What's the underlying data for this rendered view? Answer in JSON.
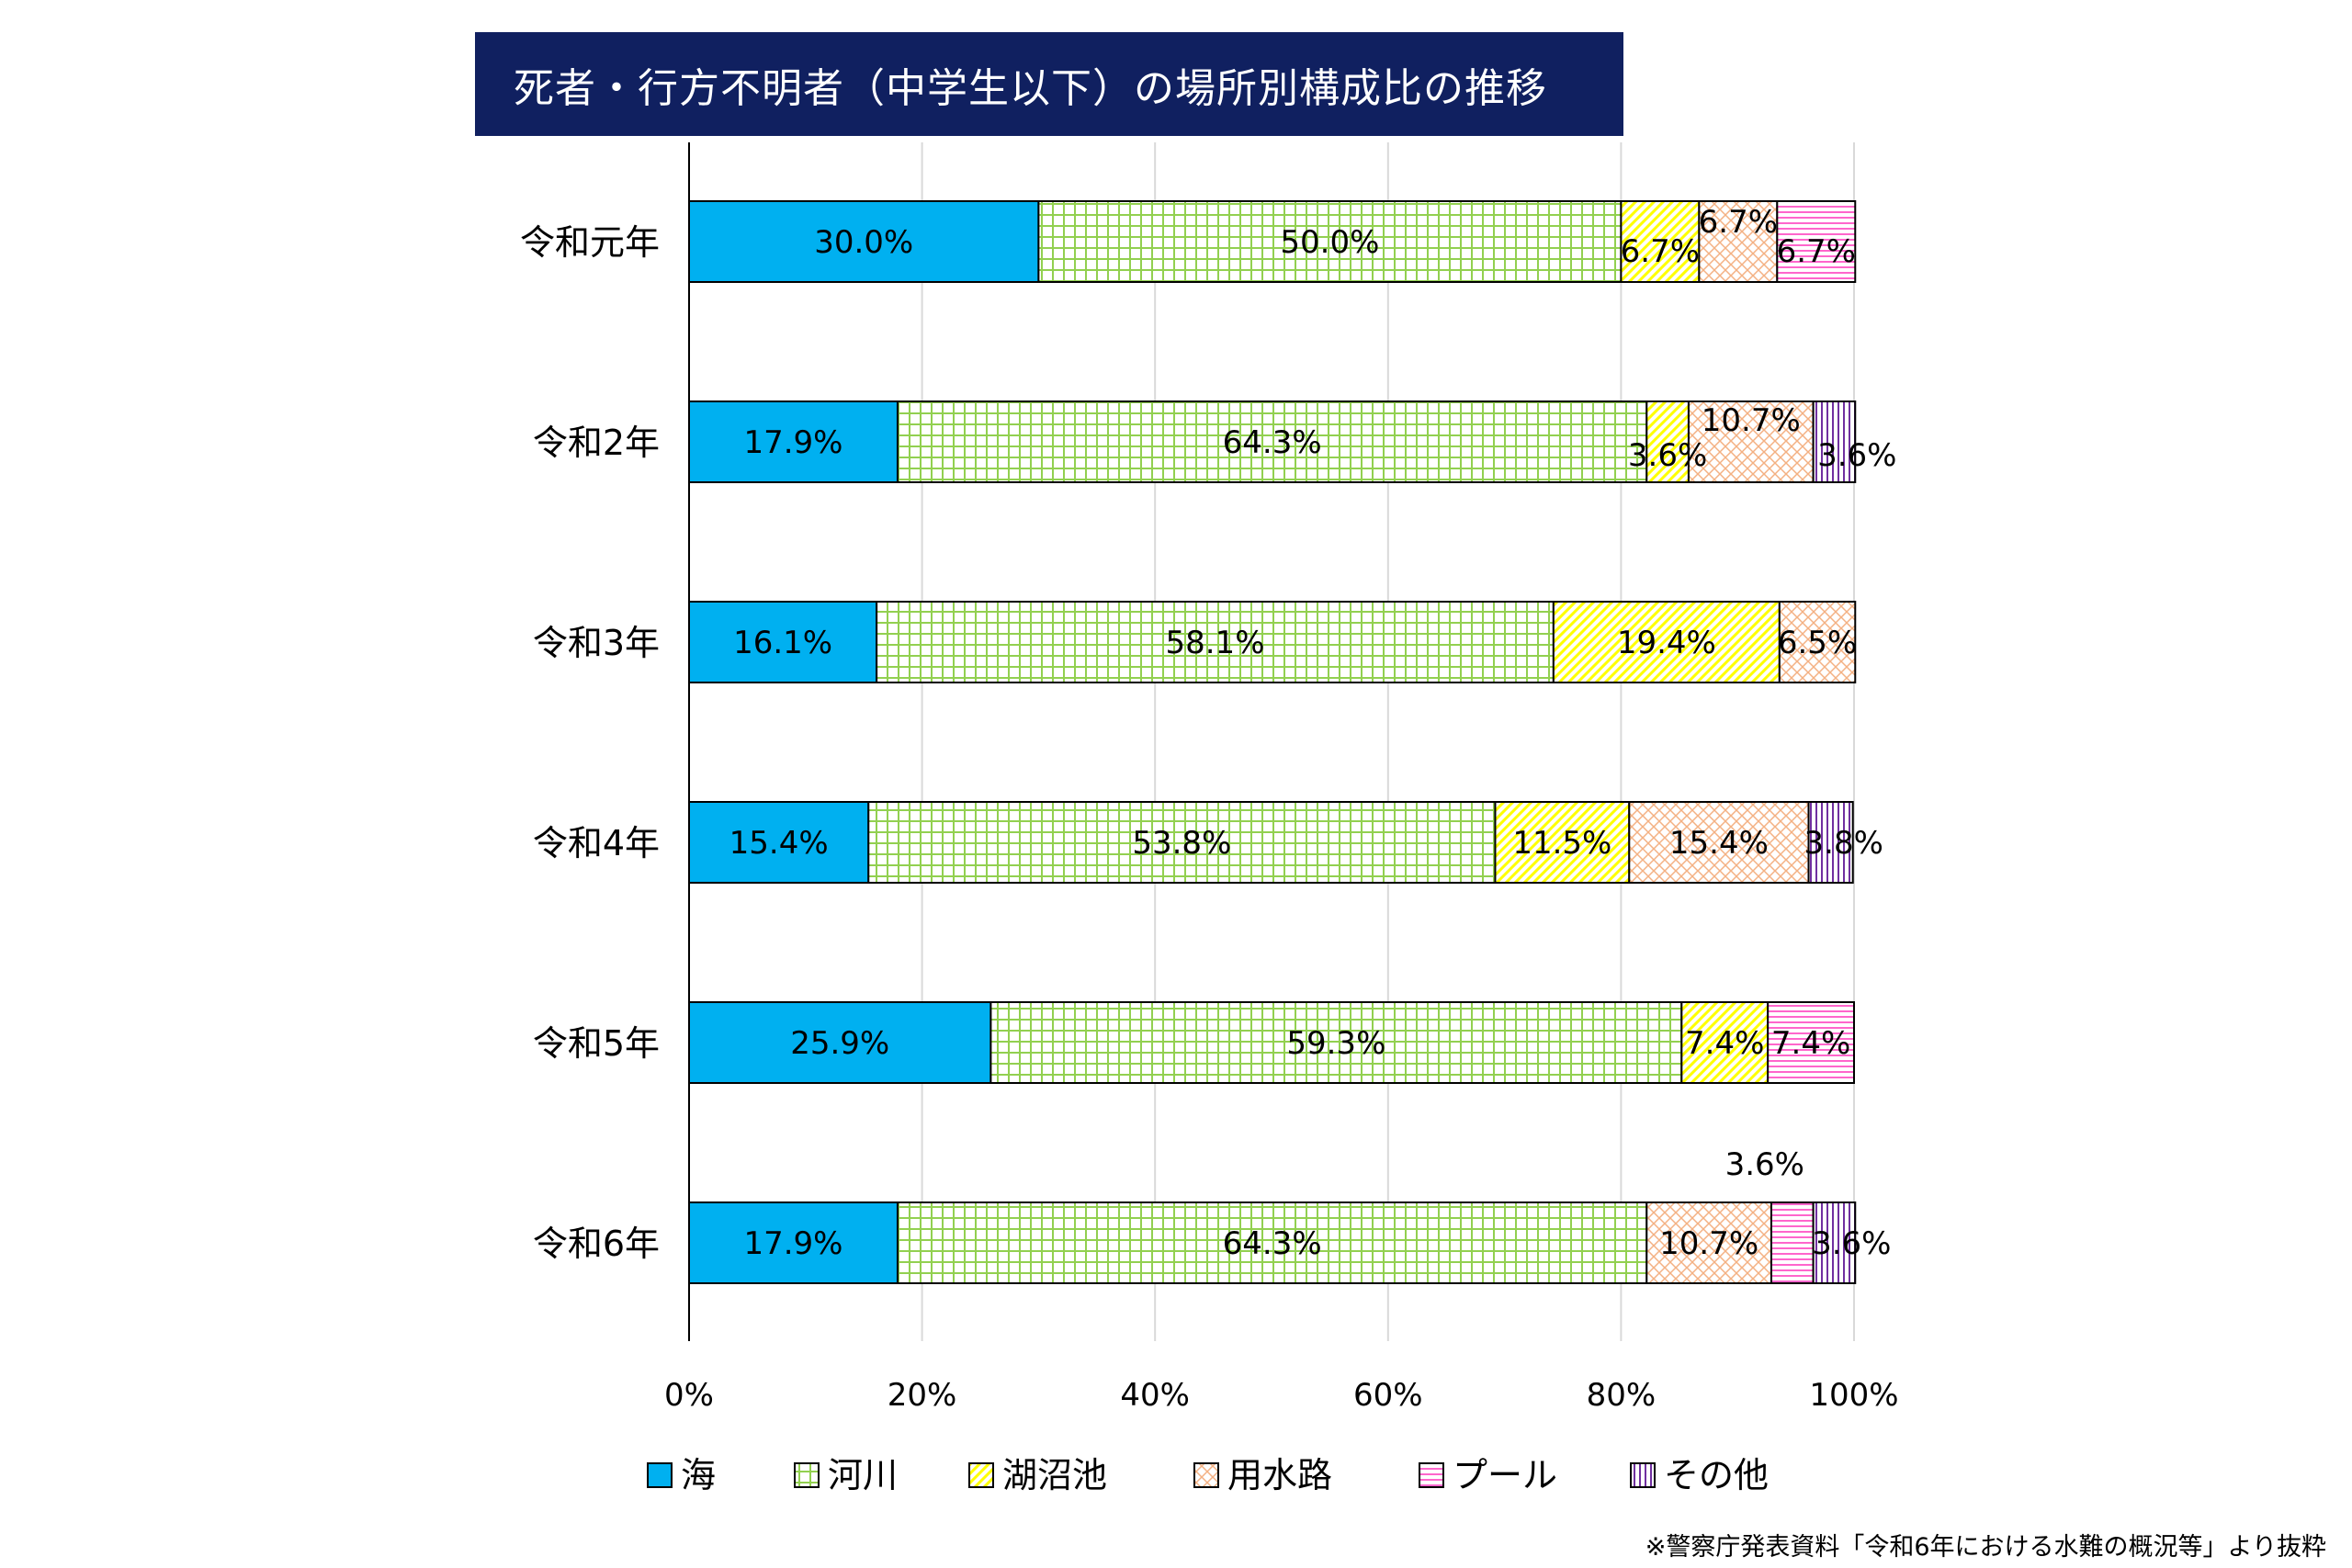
{
  "title": "死者・行方不明者（中学生以下）の場所別構成比の推移",
  "source_note": "※警察庁発表資料「令和6年における水難の概況等」より抜粋",
  "chart_data": {
    "type": "bar",
    "orientation": "horizontal",
    "stacked": true,
    "categories": [
      "令和元年",
      "令和2年",
      "令和3年",
      "令和4年",
      "令和5年",
      "令和6年"
    ],
    "series": [
      {
        "name": "海",
        "color": "#00b0f0",
        "pattern": "solid",
        "values": [
          30.0,
          17.9,
          16.1,
          15.4,
          25.9,
          17.9
        ]
      },
      {
        "name": "河川",
        "color": "#92d050",
        "pattern": "grid",
        "values": [
          50.0,
          64.3,
          58.1,
          53.8,
          59.3,
          64.3
        ]
      },
      {
        "name": "湖沼池",
        "color": "#ffff00",
        "pattern": "diagonal",
        "values": [
          6.7,
          3.6,
          19.4,
          11.5,
          7.4,
          0
        ]
      },
      {
        "name": "用水路",
        "color": "#f4b183",
        "pattern": "lattice",
        "values": [
          6.7,
          10.7,
          6.5,
          15.4,
          0,
          10.7
        ]
      },
      {
        "name": "プール",
        "color": "#ff66cc",
        "pattern": "horizontal",
        "values": [
          6.7,
          0,
          0,
          0,
          7.4,
          3.6
        ]
      },
      {
        "name": "その他",
        "color": "#7030a0",
        "pattern": "vertical",
        "values": [
          0,
          3.6,
          0,
          3.8,
          0,
          3.6
        ]
      }
    ],
    "data_labels": [
      [
        "30.0%",
        "50.0%",
        "6.7%",
        "6.7%",
        "6.7%",
        ""
      ],
      [
        "17.9%",
        "64.3%",
        "3.6%",
        "10.7%",
        "",
        "3.6%"
      ],
      [
        "16.1%",
        "58.1%",
        "19.4%",
        "6.5%",
        "",
        ""
      ],
      [
        "15.4%",
        "53.8%",
        "11.5%",
        "15.4%",
        "",
        "3.8%"
      ],
      [
        "25.9%",
        "59.3%",
        "7.4%",
        "",
        "7.4%",
        ""
      ],
      [
        "17.9%",
        "64.3%",
        "",
        "10.7%",
        "3.6%",
        "3.6%"
      ]
    ],
    "x_ticks": [
      "0%",
      "20%",
      "40%",
      "60%",
      "80%",
      "100%"
    ],
    "xlim": [
      0,
      100
    ],
    "grid": true,
    "legend_position": "bottom"
  }
}
